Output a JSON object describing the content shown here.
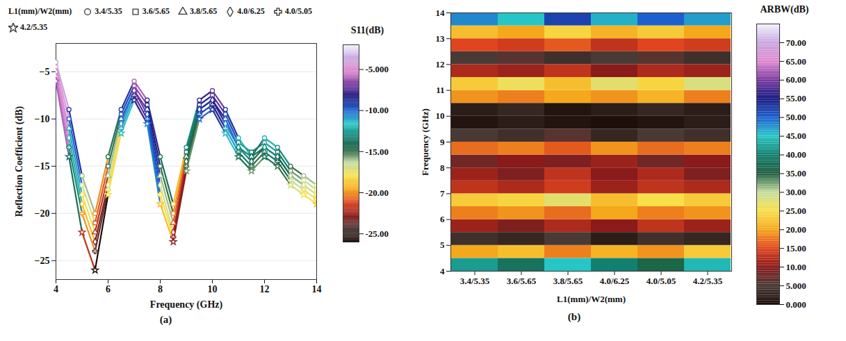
{
  "chart_data": [
    {
      "type": "line",
      "caption": "(a)",
      "x_label": "Frequency (GHz)",
      "y_label": "Reflection Coefficient (dB)",
      "x": [
        4,
        4.5,
        5,
        5.5,
        6,
        6.5,
        7,
        7.5,
        8,
        8.5,
        9,
        9.5,
        10,
        10.5,
        11,
        11.5,
        12,
        12.5,
        13,
        13.5,
        14
      ],
      "xlim": [
        4,
        14
      ],
      "xticks": [
        4,
        6,
        8,
        10,
        12,
        14
      ],
      "ylim": [
        -27,
        -2
      ],
      "yticks": [
        -25,
        -20,
        -15,
        -10,
        -5
      ],
      "grid": true,
      "marker": "symbols",
      "legend": "top",
      "legend_title": "L1(mm)/W2(mm)",
      "series": [
        {
          "name": "3.4/5.35",
          "values": [
            -4,
            -9,
            -16,
            -20,
            -14,
            -9,
            -6,
            -8,
            -14,
            -19,
            -13,
            -8,
            -7,
            -9,
            -12,
            -14,
            -12,
            -13,
            -15,
            -16,
            -17
          ]
        },
        {
          "name": "3.6/5.65",
          "values": [
            -4.5,
            -10,
            -17,
            -21,
            -15,
            -9.5,
            -6.5,
            -8.5,
            -15,
            -20,
            -13.5,
            -8.5,
            -7.5,
            -9.5,
            -12.5,
            -13.5,
            -12.5,
            -13.5,
            -15.5,
            -16.5,
            -17.5
          ]
        },
        {
          "name": "3.8/5.65",
          "values": [
            -5,
            -11,
            -18,
            -22,
            -16,
            -10,
            -7,
            -9,
            -16,
            -21,
            -14,
            -9,
            -8,
            -10,
            -13,
            -14,
            -13,
            -14,
            -16,
            -17,
            -18
          ]
        },
        {
          "name": "4.0/6.25",
          "values": [
            -5,
            -12,
            -19,
            -23,
            -17,
            -10.5,
            -7,
            -9.5,
            -17,
            -22,
            -14.5,
            -9,
            -8,
            -10.5,
            -13,
            -14.5,
            -13,
            -14,
            -16,
            -17,
            -18
          ]
        },
        {
          "name": "4.0/5.05",
          "values": [
            -5.5,
            -13,
            -20,
            -24,
            -17.5,
            -11,
            -7.5,
            -10,
            -18,
            -22.5,
            -15,
            -9.5,
            -8.5,
            -11,
            -13.5,
            -15,
            -13.5,
            -14.5,
            -16.5,
            -17.5,
            -18.5
          ]
        },
        {
          "name": "4.2/5.35",
          "values": [
            -6,
            -14,
            -22,
            -26,
            -18,
            -11.5,
            -8,
            -10.5,
            -19,
            -23,
            -15.5,
            -10,
            -9,
            -11.5,
            -14,
            -15.5,
            -14,
            -15,
            -17,
            -18,
            -19
          ]
        }
      ],
      "colorbar": {
        "title": "S11(dB)",
        "range": [
          -26,
          -2
        ],
        "ticks": [
          {
            "value": -5,
            "label": "-5.000"
          },
          {
            "value": -10,
            "label": "-10.00"
          },
          {
            "value": -15,
            "label": "-15.00"
          },
          {
            "value": -20,
            "label": "-20.00"
          },
          {
            "value": -25,
            "label": "-25.00"
          }
        ]
      }
    },
    {
      "type": "heatmap",
      "caption": "(b)",
      "x_label": "L1(mm)/W2(mm)",
      "y_label": "Frequency (GHz)",
      "categories": [
        "3.4/5.35",
        "3.6/5.65",
        "3.8/5.65",
        "4.0/6.25",
        "4.0/5.05",
        "4.2/5.35"
      ],
      "y_bins": [
        4,
        4.5,
        5,
        5.5,
        6,
        6.5,
        7,
        7.5,
        8,
        8.5,
        9,
        9.5,
        10,
        10.5,
        11,
        11.5,
        12,
        12.5,
        13,
        13.5,
        14
      ],
      "ylim": [
        4,
        14
      ],
      "yticks": [
        4,
        5,
        6,
        7,
        8,
        9,
        10,
        11,
        12,
        13,
        14
      ],
      "cells": [
        [
          42,
          38,
          45,
          40,
          36,
          44
        ],
        [
          20,
          22,
          18,
          21,
          19,
          23
        ],
        [
          4,
          3,
          5,
          2,
          4,
          3
        ],
        [
          11,
          9,
          12,
          10,
          13,
          11
        ],
        [
          18,
          19,
          17,
          20,
          18,
          19
        ],
        [
          23,
          24,
          27,
          22,
          25,
          23
        ],
        [
          13,
          12,
          14,
          11,
          13,
          12
        ],
        [
          11,
          9,
          13,
          10,
          12,
          9
        ],
        [
          8,
          10,
          9,
          11,
          8,
          10
        ],
        [
          17,
          18,
          16,
          19,
          17,
          18
        ],
        [
          5,
          4,
          6,
          3,
          5,
          4
        ],
        [
          1,
          2,
          1,
          0.5,
          1,
          2
        ],
        [
          2,
          3,
          1,
          2,
          3,
          2
        ],
        [
          19,
          18,
          20,
          19,
          21,
          18
        ],
        [
          23,
          26,
          22,
          27,
          24,
          28
        ],
        [
          12,
          11,
          13,
          10,
          12,
          11
        ],
        [
          5,
          6,
          4,
          5,
          6,
          4
        ],
        [
          15,
          14,
          16,
          13,
          15,
          14
        ],
        [
          22,
          20,
          24,
          21,
          23,
          20
        ],
        [
          48,
          45,
          52,
          46,
          50,
          47
        ]
      ],
      "colorbar": {
        "title": "ARBW(dB)",
        "range": [
          0,
          75
        ],
        "ticks": [
          {
            "value": 0,
            "label": "0.000"
          },
          {
            "value": 5,
            "label": "5.000"
          },
          {
            "value": 10,
            "label": "10.00"
          },
          {
            "value": 15,
            "label": "15.00"
          },
          {
            "value": 20,
            "label": "20.00"
          },
          {
            "value": 25,
            "label": "25.00"
          },
          {
            "value": 30,
            "label": "30.00"
          },
          {
            "value": 35,
            "label": "35.00"
          },
          {
            "value": 40,
            "label": "40.00"
          },
          {
            "value": 45,
            "label": "45.00"
          },
          {
            "value": 50,
            "label": "50.00"
          },
          {
            "value": 55,
            "label": "55.00"
          },
          {
            "value": 60,
            "label": "60.00"
          },
          {
            "value": 65,
            "label": "65.00"
          },
          {
            "value": 70,
            "label": "70.00"
          }
        ]
      }
    }
  ]
}
